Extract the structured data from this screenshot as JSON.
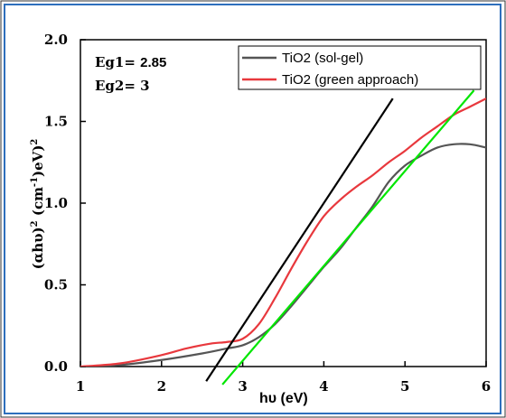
{
  "chart_data": {
    "type": "line",
    "xlabel": "hυ (eV)",
    "ylabel_main": "(αhυ)",
    "ylabel_sup1": "2",
    "ylabel_mid": " (cm",
    "ylabel_sup2": "-1",
    "ylabel_end": ")eV)",
    "ylabel_sup3": "2",
    "xlim": [
      1,
      6
    ],
    "ylim": [
      0.0,
      2.0
    ],
    "xticks": [
      "1",
      "2",
      "3",
      "4",
      "5",
      "6"
    ],
    "yticks": [
      "0.0",
      "0.5",
      "1.0",
      "1.5",
      "2.0"
    ],
    "annotations": [
      {
        "label": "Eg1= ",
        "value": "2.85"
      },
      {
        "label": "Eg2= ",
        "value": "3"
      }
    ],
    "legend_position": "top-right",
    "series": [
      {
        "name": "TiO2 (sol-gel)",
        "color": "#555555",
        "x": [
          1.0,
          1.5,
          2.0,
          2.5,
          2.8,
          3.0,
          3.2,
          3.4,
          3.6,
          3.8,
          4.0,
          4.2,
          4.4,
          4.6,
          4.8,
          5.0,
          5.2,
          5.4,
          5.6,
          5.8,
          6.0
        ],
        "y": [
          0.0,
          0.01,
          0.04,
          0.08,
          0.11,
          0.13,
          0.18,
          0.26,
          0.37,
          0.49,
          0.61,
          0.72,
          0.85,
          0.98,
          1.13,
          1.23,
          1.29,
          1.34,
          1.36,
          1.36,
          1.34
        ]
      },
      {
        "name": "TiO2 (green approach)",
        "color": "#e8383d",
        "x": [
          1.0,
          1.5,
          2.0,
          2.3,
          2.6,
          2.8,
          3.0,
          3.2,
          3.4,
          3.6,
          3.8,
          4.0,
          4.2,
          4.4,
          4.6,
          4.8,
          5.0,
          5.2,
          5.4,
          5.6,
          5.8,
          6.0
        ],
        "y": [
          0.0,
          0.02,
          0.07,
          0.11,
          0.14,
          0.15,
          0.17,
          0.26,
          0.42,
          0.6,
          0.77,
          0.92,
          1.02,
          1.1,
          1.17,
          1.25,
          1.32,
          1.4,
          1.47,
          1.54,
          1.59,
          1.64
        ]
      }
    ],
    "fit_lines": [
      {
        "color": "#000000",
        "x": [
          2.55,
          4.85
        ],
        "y": [
          -0.09,
          1.64
        ]
      },
      {
        "color": "#00e600",
        "x": [
          2.75,
          5.85
        ],
        "y": [
          -0.11,
          1.69
        ]
      }
    ]
  }
}
